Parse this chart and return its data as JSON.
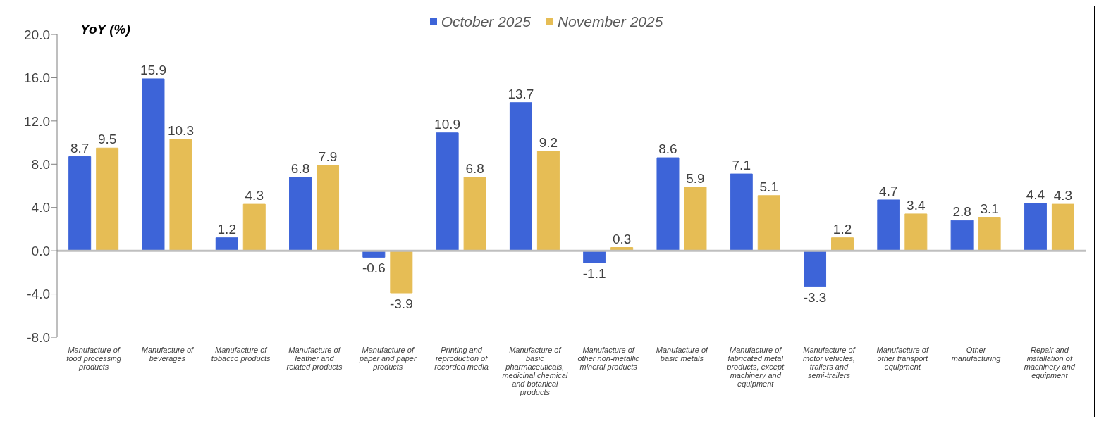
{
  "chart_data": {
    "type": "bar",
    "ylabel": "YoY (%)",
    "categories": [
      "Manufacture of food processing products",
      "Manufacture of beverages",
      "Manufacture of tobacco products",
      "Manufacture of leather and related products",
      "Manufacture of paper and paper products",
      "Printing and reproduction of recorded media",
      "Manufacture of basic pharmaceuticals, medicinal chemical and botanical products",
      "Manufacture of other non-metallic mineral products",
      "Manufacture of basic metals",
      "Manufacture of fabricated metal products, except machinery and equipment",
      "Manufacture of motor vehicles, trailers and semi-trailers",
      "Manufacture of other transport equipment",
      "Other manufacturing",
      "Repair and installation of machinery and equipment"
    ],
    "series": [
      {
        "name": "October 2025",
        "color": "#3d64d8",
        "values": [
          8.7,
          15.9,
          1.2,
          6.8,
          -0.6,
          10.9,
          13.7,
          -1.1,
          8.6,
          7.1,
          -3.3,
          4.7,
          2.8,
          4.4
        ]
      },
      {
        "name": "November 2025",
        "color": "#e6bd55",
        "values": [
          9.5,
          10.3,
          4.3,
          7.9,
          -3.9,
          6.8,
          9.2,
          0.3,
          5.9,
          5.1,
          1.2,
          3.4,
          3.1,
          4.3
        ]
      }
    ],
    "ylim": [
      -8,
      20
    ],
    "yticks": [
      {
        "value": -8,
        "label": "-8.0"
      },
      {
        "value": -4,
        "label": "-4.0"
      },
      {
        "value": 0,
        "label": "0.0"
      },
      {
        "value": 4,
        "label": "4.0"
      },
      {
        "value": 8,
        "label": "8.0"
      },
      {
        "value": 12,
        "label": "12.0"
      },
      {
        "value": 16,
        "label": "16.0"
      },
      {
        "value": 20,
        "label": "20.0"
      }
    ],
    "ref_lines": [
      {
        "axis": "y",
        "value": 0,
        "color": "#bfbfbf"
      }
    ],
    "grid": false,
    "legend": "top",
    "data_labels": true
  }
}
